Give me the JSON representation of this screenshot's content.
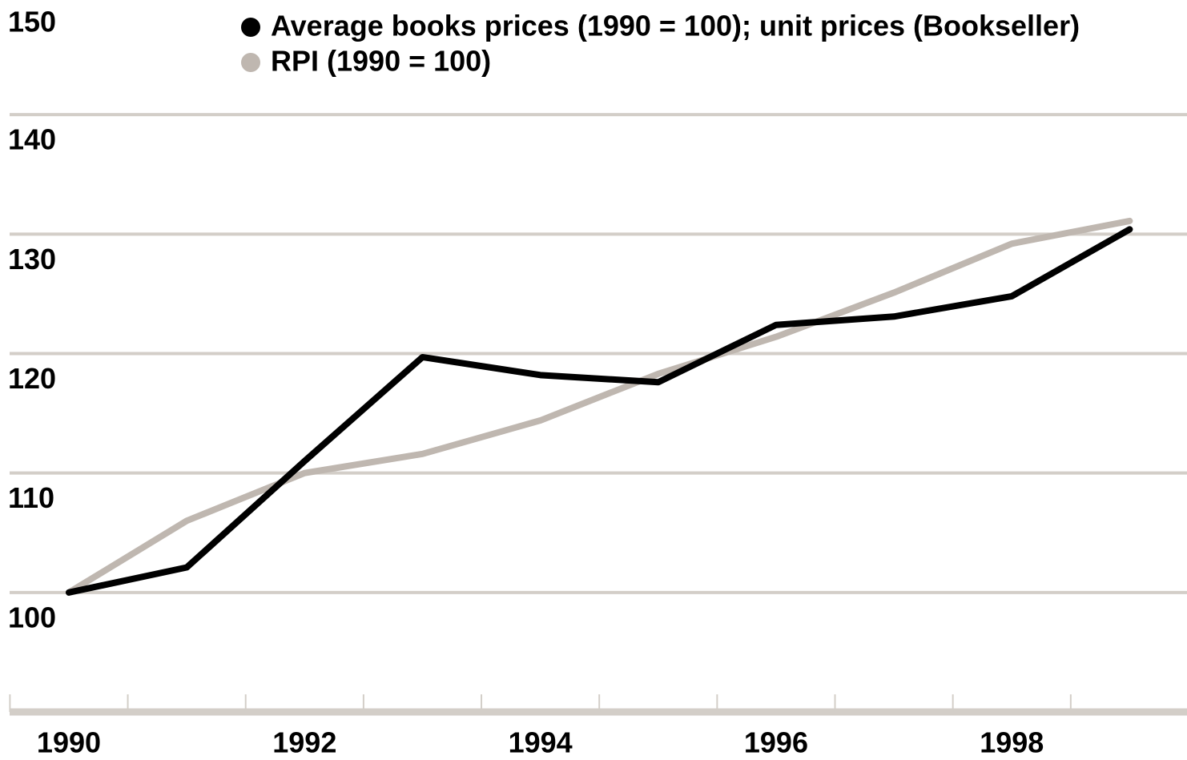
{
  "chart_data": {
    "type": "line",
    "categories": [
      "1990",
      null,
      "1992",
      null,
      "1994",
      null,
      "1996",
      null,
      "1998",
      null
    ],
    "series": [
      {
        "name": "Average books prices (1990 = 100); unit prices (Bookseller)",
        "color": "#000000",
        "values": [
          100,
          102.1,
          111,
          119.7,
          118.2,
          117.6,
          122.4,
          123.1,
          124.8,
          130.4
        ]
      },
      {
        "name": "RPI (1990 = 100)",
        "color": "#bfb7b0",
        "values": [
          100,
          106,
          110,
          111.6,
          114.4,
          118.3,
          121.4,
          125.1,
          129.2,
          131.1
        ]
      }
    ],
    "ylim": [
      90,
      150
    ],
    "yticks": [
      100,
      110,
      120,
      130,
      140,
      150
    ],
    "grid": true
  }
}
